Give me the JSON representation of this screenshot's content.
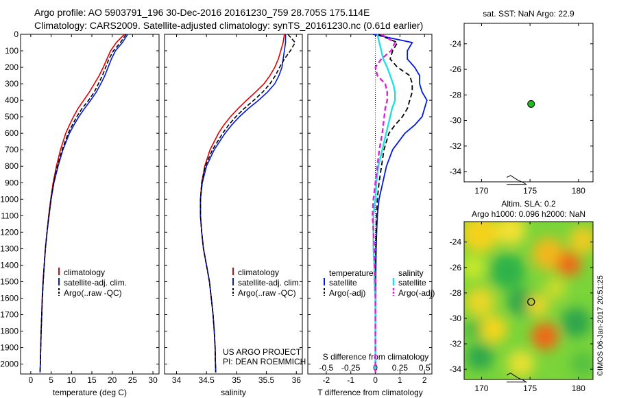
{
  "header": {
    "line1": "Argo profile: AO 5903791_196 30-Dec-2016 20161230_759 28.705S 175.114E",
    "line2": "Climatology: CARS2009. Satellite-adjusted climatology: synTS_20161230.nc (0.61d earlier)"
  },
  "stamp": "©IMOS 06-Jan-2017 20:51:25",
  "colors": {
    "climatology": "#e00000",
    "satellite": "#0018e0",
    "argo": "#000000",
    "sal_satellite": "#22e0e0",
    "sal_argo": "#e020e0",
    "marker": "#22bb22"
  },
  "depth_axis": {
    "ticks": [
      "0",
      "100",
      "200",
      "300",
      "400",
      "500",
      "600",
      "700",
      "800",
      "900",
      "1000",
      "1100",
      "1200",
      "1300",
      "1400",
      "1500",
      "1600",
      "1700",
      "1800",
      "1900",
      "2000"
    ],
    "range": [
      0,
      2060
    ]
  },
  "temperature_panel": {
    "xlabel": "temperature (deg C)",
    "xticks": [
      "0",
      "5",
      "10",
      "15",
      "20",
      "25",
      "30"
    ],
    "xrange": [
      -2.5,
      31.5
    ],
    "legend": [
      "climatology",
      "satellite-adj. clim.",
      "Argo(..raw -QC)"
    ]
  },
  "salinity_panel": {
    "xlabel": "salinity",
    "xticks": [
      "34",
      "34.5",
      "35",
      "35.5",
      "36"
    ],
    "xrange": [
      33.8,
      36.1
    ],
    "legend": [
      "climatology",
      "satellite-adj. clim.",
      "Argo(..raw -QC)"
    ],
    "note1": "US ARGO PROJECT",
    "note2": "PI: DEAN ROEMMICH"
  },
  "difference_panel": {
    "xlabel_bottom": "T difference from climatology",
    "xlabel_top": "S difference from climatology",
    "xticks": [
      "-2",
      "-1",
      "0",
      "1",
      "2"
    ],
    "sticks": [
      "-0.5",
      "-0.25",
      "0",
      "0.25",
      "0.5"
    ],
    "xrange": [
      -2.75,
      2.3
    ],
    "legend_temp_title": "temperature",
    "legend_sal_title": "salinity",
    "legend_temp": [
      "satellite",
      "Argo(-adj)"
    ],
    "legend_sal": [
      "satellite",
      "Argo(-adj)"
    ]
  },
  "map_sst": {
    "title": "sat. SST: NaN Argo: 22.9",
    "yticks": [
      "-24",
      "-26",
      "-28",
      "-30",
      "-32",
      "-34"
    ],
    "xticks": [
      "170",
      "175",
      "180"
    ],
    "lon_range": [
      168.2,
      181.5
    ],
    "lat_range": [
      -34.8,
      -22.4
    ],
    "marker": {
      "lon": 175.114,
      "lat": -28.705
    }
  },
  "map_sla": {
    "title1": "Altim. SLA: 0.2",
    "title2": "Argo h1000: 0.096 h2000: NaN",
    "yticks": [
      "-24",
      "-26",
      "-28",
      "-30",
      "-32",
      "-34"
    ],
    "xticks": [
      "170",
      "175",
      "180"
    ],
    "lon_range": [
      168.2,
      181.5
    ],
    "lat_range": [
      -34.8,
      -22.4
    ],
    "marker": {
      "lon": 175.114,
      "lat": -28.705
    }
  },
  "chart_data": [
    {
      "type": "line",
      "xlabel": "temperature (deg C)",
      "ylabel": "",
      "xlim": [
        -2.5,
        31.5
      ],
      "ylim": [
        2060,
        0
      ],
      "y": [
        0,
        50,
        100,
        150,
        200,
        250,
        300,
        350,
        400,
        450,
        500,
        550,
        600,
        700,
        800,
        900,
        1000,
        1100,
        1200,
        1300,
        1400,
        1500,
        1600,
        1700,
        1800,
        1900,
        2000,
        2050
      ],
      "series": [
        {
          "name": "climatology",
          "values": [
            23.0,
            21.0,
            19.6,
            18.7,
            17.8,
            16.8,
            15.6,
            14.4,
            13.0,
            11.6,
            10.5,
            9.5,
            8.6,
            7.3,
            6.3,
            5.5,
            4.9,
            4.4,
            4.0,
            3.6,
            3.3,
            3.0,
            2.8,
            2.7,
            2.55,
            2.45,
            2.35,
            2.3
          ]
        },
        {
          "name": "satellite-adj. clim.",
          "values": [
            23.8,
            22.5,
            20.8,
            19.8,
            19.0,
            18.2,
            17.2,
            16.1,
            14.7,
            13.2,
            11.8,
            10.6,
            9.5,
            7.9,
            6.7,
            5.7,
            5.0,
            4.5,
            4.0,
            3.6,
            3.3,
            3.05,
            2.85,
            2.7,
            2.55,
            2.45,
            2.35,
            2.3
          ]
        },
        {
          "name": "Argo(..raw -QC)",
          "values": [
            23.4,
            22.0,
            20.3,
            19.2,
            18.4,
            17.6,
            16.6,
            15.6,
            14.2,
            12.6,
            11.3,
            10.2,
            9.2,
            7.7,
            6.5,
            5.6,
            4.95,
            4.45,
            4.0,
            3.6,
            3.3,
            3.05,
            2.85,
            2.7,
            2.55,
            2.45,
            2.35,
            2.3
          ]
        }
      ]
    },
    {
      "type": "line",
      "xlabel": "salinity",
      "ylabel": "",
      "xlim": [
        33.8,
        36.1
      ],
      "ylim": [
        2060,
        0
      ],
      "y": [
        0,
        50,
        100,
        150,
        200,
        250,
        300,
        350,
        400,
        450,
        500,
        550,
        600,
        700,
        800,
        900,
        1000,
        1100,
        1200,
        1300,
        1400,
        1500,
        1600,
        1700,
        1800,
        1900,
        2000,
        2050
      ],
      "series": [
        {
          "name": "climatology",
          "values": [
            35.8,
            35.78,
            35.74,
            35.7,
            35.64,
            35.56,
            35.46,
            35.32,
            35.17,
            35.03,
            34.9,
            34.79,
            34.7,
            34.56,
            34.47,
            34.42,
            34.4,
            34.4,
            34.42,
            34.45,
            34.5,
            34.55,
            34.58,
            34.61,
            34.63,
            34.645,
            34.65,
            34.655
          ]
        },
        {
          "name": "satellite-adj. clim.",
          "values": [
            35.82,
            35.82,
            35.8,
            35.78,
            35.76,
            35.71,
            35.64,
            35.52,
            35.37,
            35.2,
            35.05,
            34.92,
            34.81,
            34.63,
            34.5,
            34.43,
            34.4,
            34.4,
            34.42,
            34.45,
            34.5,
            34.55,
            34.58,
            34.61,
            34.63,
            34.645,
            34.65,
            34.655
          ]
        },
        {
          "name": "Argo(..raw -QC)",
          "values": [
            35.86,
            35.98,
            35.9,
            35.8,
            35.72,
            35.65,
            35.56,
            35.44,
            35.29,
            35.13,
            34.99,
            34.87,
            34.77,
            34.6,
            34.48,
            34.42,
            34.4,
            34.4,
            34.42,
            34.45,
            34.5,
            34.55,
            34.58,
            34.61,
            34.63,
            34.645,
            34.65,
            34.655
          ]
        }
      ]
    },
    {
      "type": "line",
      "xlabel": "T difference from climatology",
      "ylabel": "",
      "xlim": [
        -2.75,
        2.3
      ],
      "ylim": [
        2060,
        0
      ],
      "y": [
        0,
        50,
        100,
        150,
        200,
        250,
        300,
        350,
        400,
        450,
        500,
        550,
        600,
        700,
        800,
        900,
        1000,
        1100,
        1200,
        1300,
        1400,
        1500,
        1600,
        1700,
        1800,
        1900,
        2000,
        2050
      ],
      "series": [
        {
          "name": "temperature satellite",
          "values": [
            -0.1,
            1.5,
            1.3,
            1.3,
            1.6,
            1.8,
            1.8,
            1.9,
            2.1,
            2.0,
            1.9,
            1.6,
            1.2,
            0.7,
            0.45,
            0.3,
            0.15,
            0.08,
            0.05,
            0.03,
            0.02,
            0.01,
            0.01,
            0.01,
            0.0,
            0.0,
            0.0,
            0.0
          ]
        },
        {
          "name": "temperature Argo(-adj)",
          "values": [
            0.1,
            0.9,
            0.7,
            0.6,
            0.9,
            1.4,
            1.5,
            1.5,
            1.4,
            1.3,
            1.1,
            0.8,
            0.55,
            0.35,
            0.25,
            0.15,
            0.08,
            0.05,
            0.03,
            0.02,
            0.01,
            0.01,
            0.0,
            0.0,
            0.0,
            0.0,
            0.0,
            0.0
          ]
        }
      ]
    },
    {
      "type": "line",
      "xlabel": "S difference from climatology",
      "ylabel": "",
      "xlim": [
        -0.6875,
        0.575
      ],
      "ylim": [
        2060,
        0
      ],
      "y": [
        0,
        50,
        100,
        150,
        200,
        250,
        300,
        350,
        400,
        450,
        500,
        550,
        600,
        700,
        800,
        900,
        1000,
        1100,
        1200,
        1300,
        1400,
        1500,
        1600,
        1700,
        1800,
        1900,
        2000,
        2050
      ],
      "series": [
        {
          "name": "salinity satellite",
          "values": [
            0.02,
            0.04,
            0.06,
            0.08,
            0.12,
            0.15,
            0.18,
            0.2,
            0.2,
            0.17,
            0.15,
            0.13,
            0.11,
            0.07,
            0.03,
            0.01,
            0.0,
            -0.02,
            -0.02,
            -0.02,
            -0.01,
            -0.01,
            0.0,
            0.0,
            0.0,
            0.0,
            0.0,
            0.0
          ]
        },
        {
          "name": "salinity Argo(-adj)",
          "values": [
            0.06,
            0.2,
            0.16,
            0.06,
            0.0,
            0.02,
            0.1,
            0.12,
            0.12,
            0.1,
            0.09,
            0.08,
            0.07,
            0.04,
            0.02,
            0.0,
            -0.02,
            -0.03,
            -0.02,
            -0.01,
            -0.01,
            0.0,
            0.0,
            0.0,
            0.0,
            0.0,
            0.0,
            0.0
          ]
        }
      ]
    }
  ]
}
